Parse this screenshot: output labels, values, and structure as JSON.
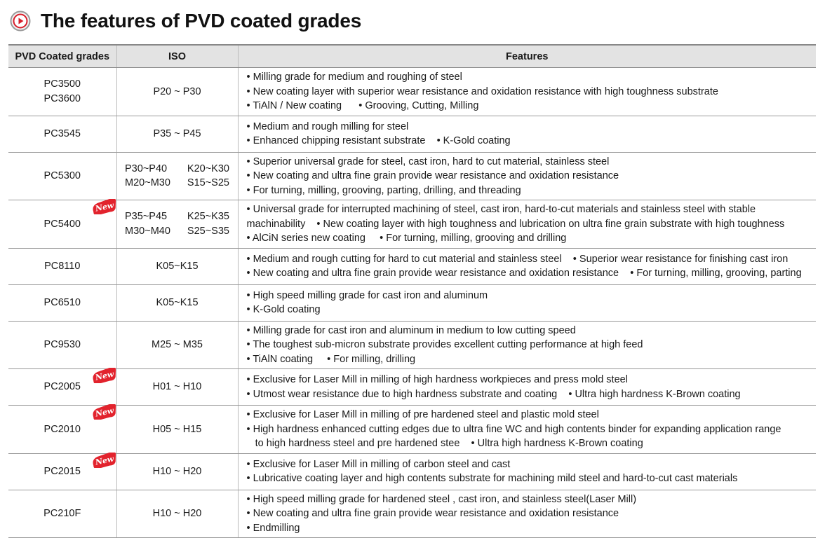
{
  "header": {
    "title": "The features of PVD coated grades",
    "icon": "play-circle-icon",
    "accent": "#d81e2a"
  },
  "table": {
    "columns": [
      "PVD Coated grades",
      "ISO",
      "Features"
    ],
    "badge_text": "New",
    "rows": [
      {
        "grades": [
          "PC3500",
          "PC3600"
        ],
        "iso": [
          "P20 ~ P30"
        ],
        "new": false,
        "features": [
          "• Milling grade for medium and roughing of steel",
          "• New coating layer with superior wear resistance and oxidation resistance with high toughness substrate",
          "• TiAlN / New coating      • Grooving, Cutting, Milling"
        ]
      },
      {
        "grades": [
          "PC3545"
        ],
        "iso": [
          "P35 ~ P45"
        ],
        "new": false,
        "features": [
          "• Medium and rough milling for steel",
          "• Enhanced chipping resistant substrate    • K-Gold coating"
        ]
      },
      {
        "grades": [
          "PC5300"
        ],
        "iso": [
          "P30~P40",
          "K20~K30",
          "M20~M30",
          "S15~S25"
        ],
        "new": false,
        "features": [
          "• Superior universal grade for steel, cast iron, hard to cut material, stainless steel",
          "• New coating and ultra fine grain provide wear resistance and oxidation resistance",
          "• For turning, milling, grooving, parting, drilling, and threading"
        ]
      },
      {
        "grades": [
          "PC5400"
        ],
        "iso": [
          "P35~P45",
          "K25~K35",
          "M30~M40",
          "S25~S35"
        ],
        "new": true,
        "features": [
          "• Universal grade for interrupted machining of steel, cast iron, hard-to-cut materials and stainless steel with stable",
          "machinability    • New coating layer with high toughness and lubrication on ultra fine grain substrate with high toughness",
          "• AlCiN series new coating     • For turning, milling, grooving and drilling"
        ]
      },
      {
        "grades": [
          "PC8110"
        ],
        "iso": [
          "K05~K15"
        ],
        "new": false,
        "features": [
          "• Medium and rough cutting for hard to cut material and stainless steel    • Superior wear resistance for finishing cast iron",
          "• New coating and ultra fine grain provide wear resistance and oxidation resistance    • For turning, milling, grooving, parting"
        ]
      },
      {
        "grades": [
          "PC6510"
        ],
        "iso": [
          "K05~K15"
        ],
        "new": false,
        "features": [
          "• High speed milling grade for cast iron and aluminum",
          "• K-Gold coating"
        ]
      },
      {
        "grades": [
          "PC9530"
        ],
        "iso": [
          "M25 ~ M35"
        ],
        "new": false,
        "features": [
          "• Milling grade for cast iron and aluminum in medium to low cutting speed",
          "• The toughest sub-micron substrate provides excellent cutting performance at high feed",
          "• TiAlN coating     • For milling, drilling"
        ]
      },
      {
        "grades": [
          "PC2005"
        ],
        "iso": [
          "H01 ~ H10"
        ],
        "new": true,
        "features": [
          "• Exclusive for Laser Mill in milling of high hardness workpieces and press mold steel",
          "• Utmost wear resistance due to high hardness substrate and coating    • Ultra high hardness K-Brown coating"
        ]
      },
      {
        "grades": [
          "PC2010"
        ],
        "iso": [
          "H05 ~ H15"
        ],
        "new": true,
        "features": [
          "• Exclusive for Laser Mill in milling of pre hardened steel and plastic mold steel",
          "• High hardness enhanced cutting edges due to ultra fine WC and high contents binder for expanding application range",
          "   to high hardness steel and pre hardened stee    • Ultra high hardness K-Brown coating"
        ]
      },
      {
        "grades": [
          "PC2015"
        ],
        "iso": [
          "H10 ~ H20"
        ],
        "new": true,
        "features": [
          "• Exclusive for Laser Mill in milling of carbon steel and cast",
          "• Lubricative coating layer and high contents substrate for machining mild steel and hard-to-cut cast materials"
        ]
      },
      {
        "grades": [
          "PC210F"
        ],
        "iso": [
          "H10 ~ H20"
        ],
        "new": false,
        "features": [
          "• High speed milling grade for hardened steel , cast iron, and stainless steel(Laser Mill)",
          "• New coating and ultra fine grain provide wear resistance and oxidation resistance",
          "• Endmilling"
        ]
      }
    ]
  }
}
